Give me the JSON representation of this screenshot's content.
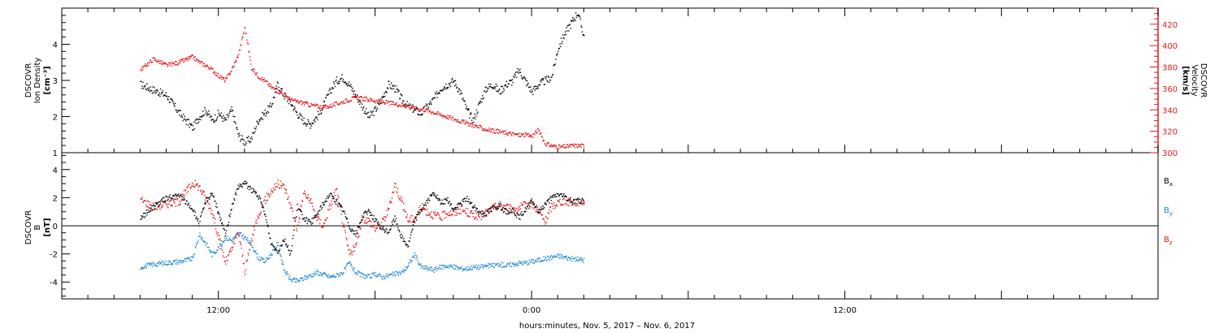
{
  "chart_data": [
    {
      "type": "scatter",
      "panel": "plasma",
      "ylabel_left": [
        "DSCOVR",
        "Ion Density",
        "[cm⁻³]"
      ],
      "ylabel_right": [
        "DSCOVR",
        "Velocity",
        "[km/s]"
      ],
      "y_left_range": [
        1,
        5
      ],
      "y_left_ticks": [
        "1",
        "2",
        "3",
        "4"
      ],
      "y_right_range": [
        300,
        435
      ],
      "y_right_ticks": [
        "300",
        "320",
        "340",
        "360",
        "380",
        "400",
        "420"
      ],
      "series": [
        {
          "axis": "left",
          "color": "#000000",
          "x": [
            6,
            8,
            9,
            10,
            10.5,
            11,
            11.5,
            12,
            12.5,
            13,
            13.5,
            14,
            14.5,
            15,
            15.5,
            16,
            16.5,
            17,
            17.5,
            18,
            18.5,
            19,
            19.5,
            20,
            20.5,
            21,
            21.5,
            22,
            22.5,
            23,
            23.5,
            24,
            24.5,
            25,
            25.5,
            26,
            26.5,
            27,
            27.5,
            28,
            28.5,
            29,
            29.5,
            30,
            30.5,
            31,
            31.5,
            32,
            32.5,
            33,
            33.5,
            34,
            34.5,
            35,
            35.5,
            36,
            36.5,
            37,
            37.5,
            38,
            38.5,
            39,
            39.5,
            40
          ],
          "y": [
            2.9,
            2.6,
            2.1,
            1.7,
            2.0,
            2.2,
            1.9,
            2.1,
            1.9,
            2.2,
            1.5,
            1.3,
            1.4,
            1.9,
            2.1,
            2.3,
            2.9,
            2.6,
            2.4,
            2.1,
            1.9,
            1.8,
            2.0,
            2.3,
            2.7,
            3.0,
            3.1,
            2.9,
            2.6,
            2.3,
            2.0,
            2.2,
            2.5,
            2.9,
            2.8,
            2.5,
            2.3,
            2.2,
            2.1,
            2.3,
            2.5,
            2.8,
            2.9,
            3.0,
            2.7,
            2.2,
            1.9,
            2.4,
            2.8,
            2.9,
            2.7,
            2.9,
            3.0,
            3.3,
            3.0,
            2.7,
            2.9,
            3.0,
            3.1,
            3.9,
            4.3,
            4.6,
            4.9,
            4.2
          ]
        },
        {
          "axis": "right",
          "color": "#e41a1c",
          "x": [
            6,
            7,
            8,
            9,
            10,
            10.5,
            11,
            11.5,
            12,
            12.5,
            13,
            13.5,
            14,
            14.5,
            15,
            15.5,
            16,
            16.5,
            17,
            17.5,
            18,
            18.5,
            19,
            19.5,
            20,
            20.5,
            21,
            21.5,
            22,
            22.5,
            23,
            23.5,
            24,
            24.5,
            25,
            25.5,
            26,
            26.5,
            27,
            27.5,
            28,
            28.5,
            29,
            29.5,
            30,
            30.5,
            31,
            31.5,
            32,
            32.5,
            33,
            33.5,
            34,
            34.5,
            35,
            35.5,
            36,
            36.5,
            37,
            37.5,
            38,
            38.5,
            39,
            40
          ],
          "y": [
            378,
            388,
            382,
            385,
            390,
            385,
            382,
            378,
            372,
            368,
            378,
            392,
            418,
            380,
            372,
            368,
            362,
            358,
            355,
            350,
            348,
            347,
            345,
            344,
            343,
            344,
            346,
            348,
            350,
            352,
            351,
            350,
            349,
            348,
            347,
            346,
            345,
            344,
            342,
            341,
            340,
            338,
            336,
            334,
            332,
            330,
            328,
            326,
            324,
            322,
            321,
            320,
            319,
            318,
            317,
            317,
            316,
            322,
            309,
            307,
            306,
            306,
            307,
            307
          ]
        }
      ]
    },
    {
      "type": "scatter",
      "panel": "magnetic-field",
      "ylabel_left": [
        "DSCOVR",
        "B",
        "[nT]"
      ],
      "y_left_range": [
        -5.2,
        5.2
      ],
      "y_left_ticks": [
        "-4",
        "-2",
        "0",
        "2",
        "4"
      ],
      "legend_position": "right",
      "series": [
        {
          "name": "Bx",
          "legend_main": "B",
          "legend_sub": "x",
          "color": "#000000",
          "x": [
            6,
            7,
            8,
            9,
            10,
            10.5,
            11,
            11.5,
            12,
            12.5,
            13,
            13.5,
            14,
            14.5,
            15,
            15.5,
            16,
            16.5,
            17,
            17.5,
            18,
            18.5,
            19,
            19.5,
            20,
            20.5,
            21,
            21.5,
            22,
            22.5,
            23,
            23.5,
            24,
            24.5,
            25,
            25.5,
            26,
            26.5,
            27,
            27.5,
            28,
            28.5,
            29,
            29.5,
            30,
            30.5,
            31,
            31.5,
            32,
            32.5,
            33,
            33.5,
            34,
            34.5,
            35,
            35.5,
            36,
            36.5,
            37,
            37.5,
            38,
            38.5,
            39,
            40
          ],
          "y": [
            0.6,
            1.4,
            2.0,
            2.2,
            1.2,
            0.2,
            1.8,
            2.4,
            0.8,
            -0.6,
            1.5,
            2.8,
            3.1,
            2.6,
            2.2,
            1.0,
            -1.2,
            -1.8,
            -0.9,
            -2.0,
            1.4,
            0.6,
            0.2,
            0.8,
            1.6,
            2.3,
            1.7,
            1.2,
            0.0,
            -0.6,
            0.7,
            1.1,
            0.4,
            -0.2,
            -0.4,
            0.6,
            -0.8,
            -1.4,
            0.4,
            1.2,
            1.8,
            2.4,
            1.6,
            1.9,
            1.2,
            1.6,
            2.0,
            1.4,
            1.0,
            0.9,
            1.3,
            1.5,
            1.0,
            1.2,
            0.6,
            1.2,
            1.8,
            1.0,
            1.6,
            2.0,
            2.3,
            2.1,
            1.8,
            1.8
          ]
        },
        {
          "name": "By",
          "legend_main": "B",
          "legend_sub": "y",
          "color": "#1e88d2",
          "x": [
            6,
            7,
            8,
            9,
            10,
            10.5,
            11,
            11.5,
            12,
            12.5,
            13,
            13.5,
            14,
            14.5,
            15,
            15.5,
            16,
            16.5,
            17,
            17.5,
            18,
            18.5,
            19,
            19.5,
            20,
            20.5,
            21,
            21.5,
            22,
            22.5,
            23,
            23.5,
            24,
            24.5,
            25,
            25.5,
            26,
            26.5,
            27,
            27.5,
            28,
            28.5,
            29,
            29.5,
            30,
            30.5,
            31,
            31.5,
            32,
            32.5,
            33,
            33.5,
            34,
            34.5,
            35,
            35.5,
            36,
            36.5,
            37,
            37.5,
            38,
            38.5,
            39,
            40
          ],
          "y": [
            -2.9,
            -2.7,
            -2.6,
            -2.5,
            -2.3,
            -0.6,
            -1.2,
            -2.0,
            -1.5,
            -0.8,
            -1.0,
            -0.5,
            -0.8,
            -1.3,
            -2.2,
            -2.5,
            -2.0,
            -1.2,
            -3.1,
            -3.8,
            -3.9,
            -3.7,
            -3.5,
            -3.3,
            -3.4,
            -3.6,
            -3.5,
            -3.3,
            -2.6,
            -3.3,
            -3.5,
            -3.6,
            -3.4,
            -3.6,
            -3.5,
            -3.4,
            -3.3,
            -2.8,
            -2.0,
            -2.9,
            -3.0,
            -3.1,
            -2.9,
            -2.8,
            -2.9,
            -3.0,
            -3.0,
            -2.9,
            -2.9,
            -2.8,
            -2.8,
            -2.7,
            -2.8,
            -2.7,
            -2.6,
            -2.6,
            -2.5,
            -2.4,
            -2.3,
            -2.2,
            -2.1,
            -2.2,
            -2.3,
            -2.4
          ]
        },
        {
          "name": "Bz",
          "legend_main": "B",
          "legend_sub": "z",
          "color": "#e41a1c",
          "x": [
            6,
            7,
            8,
            9,
            10,
            10.5,
            11,
            11.5,
            12,
            12.5,
            13,
            13.5,
            14,
            14.5,
            15,
            15.5,
            16,
            16.5,
            17,
            17.5,
            18,
            18.5,
            19,
            19.5,
            20,
            20.5,
            21,
            21.5,
            22,
            22.5,
            23,
            23.5,
            24,
            24.5,
            25,
            25.5,
            26,
            26.5,
            27,
            27.5,
            28,
            28.5,
            29,
            29.5,
            30,
            30.5,
            31,
            31.5,
            32,
            32.5,
            33,
            33.5,
            34,
            34.5,
            35,
            35.5,
            36,
            36.5,
            37,
            37.5,
            38,
            38.5,
            39,
            40
          ],
          "y": [
            1.9,
            1.4,
            1.6,
            1.8,
            3.1,
            2.8,
            2.0,
            1.0,
            -0.8,
            -2.6,
            -1.6,
            -0.4,
            -3.2,
            -1.0,
            0.8,
            1.8,
            2.5,
            3.0,
            2.8,
            1.5,
            -0.2,
            2.4,
            1.8,
            0.6,
            0.0,
            1.4,
            2.6,
            0.2,
            -2.0,
            -1.4,
            0.6,
            0.4,
            -0.2,
            0.2,
            1.2,
            3.0,
            1.8,
            0.4,
            0.6,
            1.4,
            1.0,
            0.8,
            0.6,
            1.0,
            0.9,
            1.2,
            1.0,
            0.8,
            0.7,
            1.0,
            1.3,
            1.5,
            1.4,
            1.2,
            1.3,
            1.5,
            1.6,
            1.1,
            0.3,
            1.4,
            1.7,
            1.8,
            1.7,
            1.8
          ]
        }
      ]
    }
  ],
  "x_axis": {
    "range_hours": [
      0,
      84
    ],
    "tick_labels": [
      {
        "hour": 12,
        "label": "12:00"
      },
      {
        "hour": 36,
        "label": "0:00"
      },
      {
        "hour": 60,
        "label": "12:00"
      }
    ],
    "label": "hours:minutes, Nov.  5, 2017 – Nov.  6, 2017"
  },
  "colors": {
    "axis": "#000000",
    "velocity": "#e41a1c",
    "by": "#1e88d2"
  }
}
